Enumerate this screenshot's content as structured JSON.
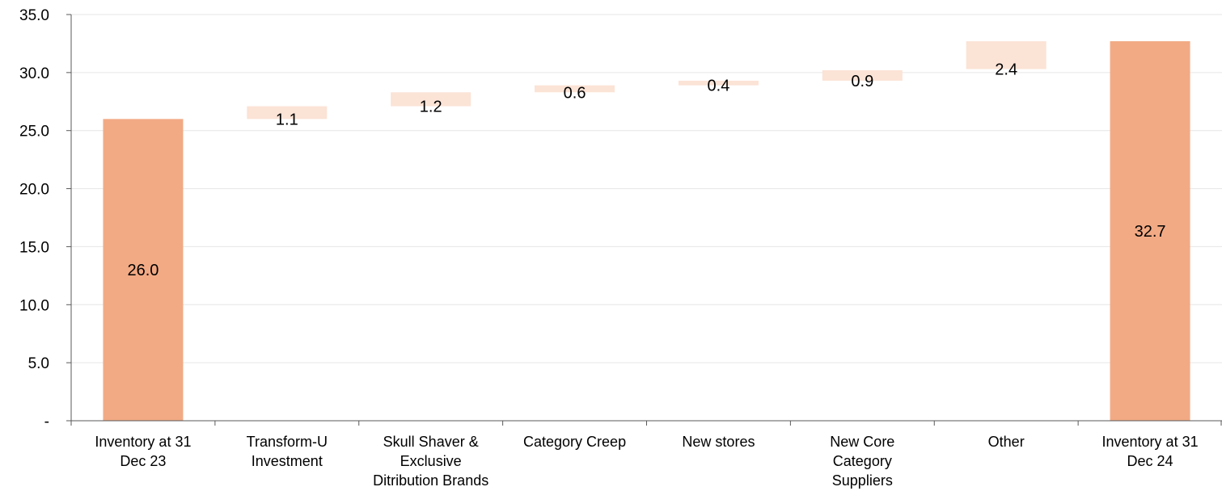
{
  "chart_data": {
    "type": "bar",
    "subtype": "waterfall",
    "title": "",
    "xlabel": "",
    "ylabel": "",
    "ylim": [
      0,
      35
    ],
    "yticks": [
      0,
      5,
      10,
      15,
      20,
      25,
      30,
      35
    ],
    "ytick_labels": [
      "-",
      "5.0",
      "10.0",
      "15.0",
      "20.0",
      "25.0",
      "30.0",
      "35.0"
    ],
    "grid": true,
    "legend": "none",
    "categories": [
      [
        "Inventory at 31",
        "Dec 23"
      ],
      [
        "Transform-U",
        "Investment"
      ],
      [
        "Skull Shaver &",
        "Exclusive",
        "Ditribution Brands"
      ],
      [
        "Category Creep"
      ],
      [
        "New stores"
      ],
      [
        "New Core",
        "Category",
        "Suppliers"
      ],
      [
        "Other"
      ],
      [
        "Inventory at 31",
        "Dec 24"
      ]
    ],
    "bars": [
      {
        "kind": "total",
        "start": 0,
        "value": 26.0,
        "label": "26.0"
      },
      {
        "kind": "delta",
        "start": 26.0,
        "value": 1.1,
        "label": "1.1"
      },
      {
        "kind": "delta",
        "start": 27.1,
        "value": 1.2,
        "label": "1.2"
      },
      {
        "kind": "delta",
        "start": 28.3,
        "value": 0.6,
        "label": "0.6"
      },
      {
        "kind": "delta",
        "start": 28.9,
        "value": 0.4,
        "label": "0.4"
      },
      {
        "kind": "delta",
        "start": 29.3,
        "value": 0.9,
        "label": "0.9"
      },
      {
        "kind": "delta",
        "start": 30.3,
        "value": 2.4,
        "label": "2.4"
      },
      {
        "kind": "total",
        "start": 0,
        "value": 32.7,
        "label": "32.7"
      }
    ],
    "colors": {
      "total": "#F2AA84",
      "delta": "#FBE3D6",
      "grid": "#E6E6E6",
      "axis": "#595959"
    }
  }
}
